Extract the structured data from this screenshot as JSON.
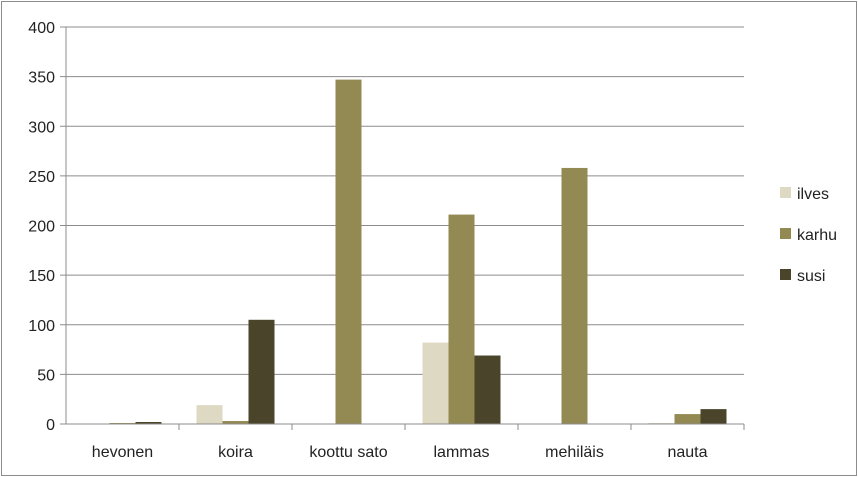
{
  "chart_data": {
    "type": "bar",
    "title": "",
    "xlabel": "",
    "ylabel": "",
    "categories": [
      "hevonen",
      "koira",
      "koottu sato",
      "lammas",
      "mehiläis",
      "nauta"
    ],
    "series": [
      {
        "name": "ilves",
        "color": "#ddd9c3",
        "values": [
          0,
          19,
          0,
          82,
          0,
          1
        ]
      },
      {
        "name": "karhu",
        "color": "#938953",
        "values": [
          1,
          3,
          347,
          211,
          258,
          10
        ]
      },
      {
        "name": "susi",
        "color": "#4a452a",
        "values": [
          2,
          105,
          0,
          69,
          0,
          15
        ]
      }
    ],
    "ylim": [
      0,
      400
    ],
    "yticks": [
      0,
      50,
      100,
      150,
      200,
      250,
      300,
      350,
      400
    ],
    "grid": true,
    "legend_position": "right"
  }
}
